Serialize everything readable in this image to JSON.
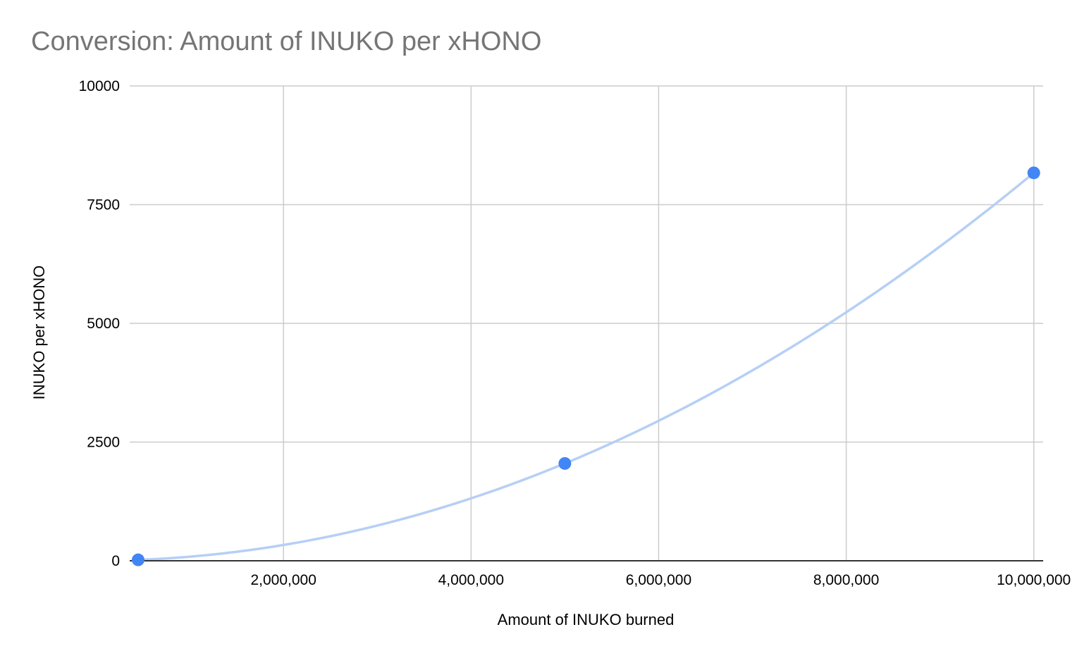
{
  "chart_data": {
    "type": "scatter",
    "title": "Conversion: Amount of INUKO per xHONO",
    "xlabel": "Amount of INUKO burned",
    "ylabel": "INUKO per xHONO",
    "xlim": [
      360000,
      10100000
    ],
    "ylim": [
      0,
      10000
    ],
    "x_ticks": [
      2000000,
      4000000,
      6000000,
      8000000,
      10000000
    ],
    "x_tick_labels": [
      "2,000,000",
      "4,000,000",
      "6,000,000",
      "8,000,000",
      "10,000,000"
    ],
    "y_ticks": [
      0,
      2500,
      5000,
      7500,
      10000
    ],
    "y_tick_labels": [
      "0",
      "2500",
      "5000",
      "7500",
      "10000"
    ],
    "grid": true,
    "series": [
      {
        "x": [
          450000,
          5000000,
          10000000
        ],
        "y": [
          20,
          2050,
          8170
        ]
      }
    ],
    "trendline": {
      "type": "polynomial",
      "degree": 2
    },
    "colors": {
      "point": "#4285f4",
      "trendline": "#b6cff5",
      "grid": "#cccccc",
      "axis": "#333333",
      "title": "#757575"
    }
  }
}
